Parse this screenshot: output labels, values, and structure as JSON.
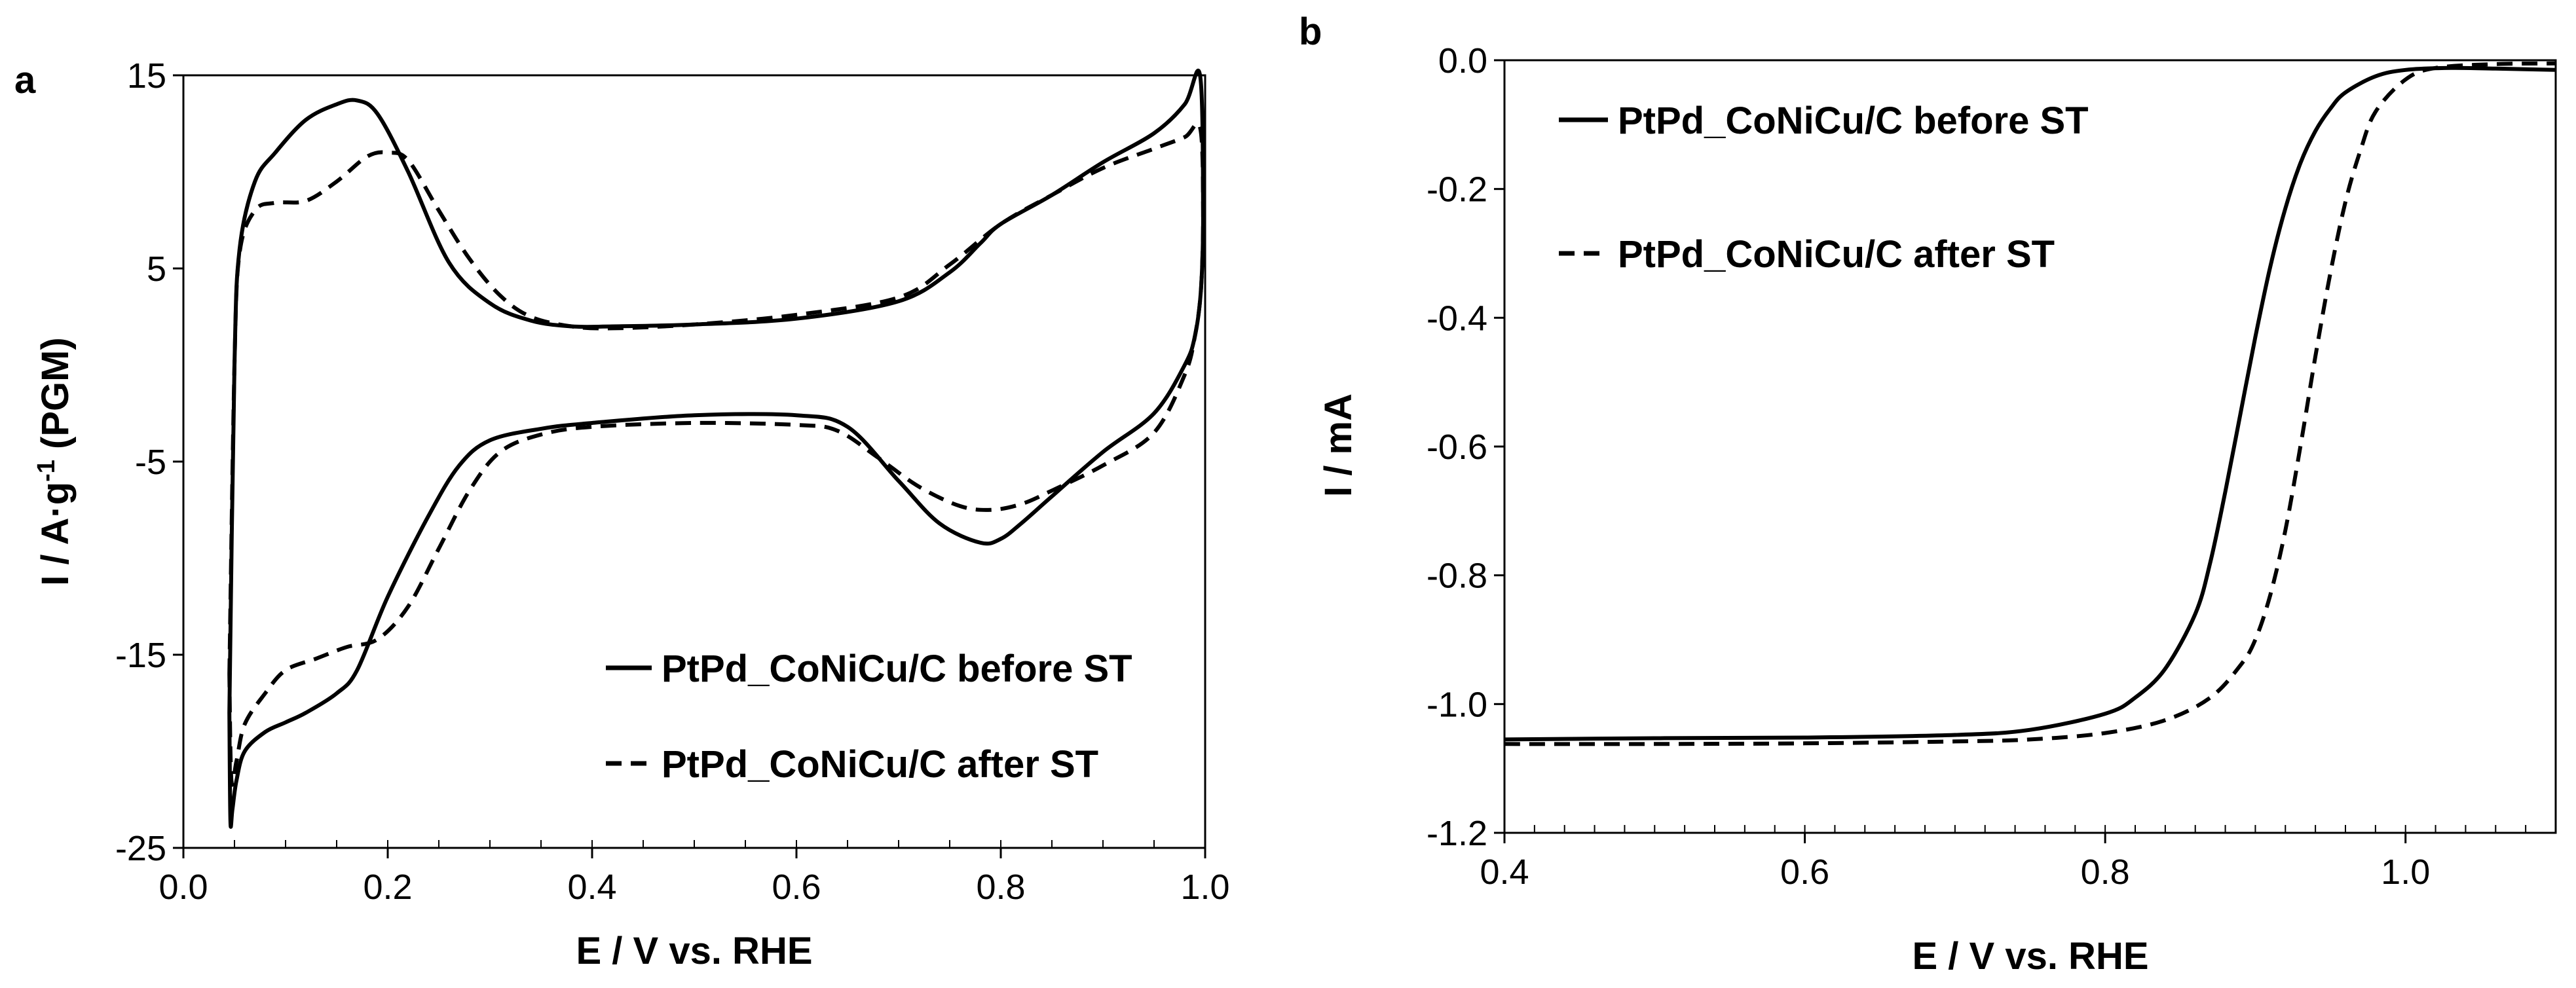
{
  "chart_data": [
    {
      "panel_label": "a",
      "type": "line",
      "xlabel": "E / V vs. RHE",
      "ylabel": {
        "main": "I / A·g",
        "sup": "-1",
        "suffix": " (PGM)"
      },
      "xlim": [
        0.0,
        1.0
      ],
      "ylim": [
        -25,
        15
      ],
      "xticks": [
        0.0,
        0.2,
        0.4,
        0.6,
        0.8,
        1.0
      ],
      "xtick_labels": [
        "0.0",
        "0.2",
        "0.4",
        "0.6",
        "0.8",
        "1.0"
      ],
      "yticks": [
        15,
        5,
        -5,
        -15,
        -25
      ],
      "ytick_labels": [
        "15",
        "5",
        "-5",
        "-15",
        "-25"
      ],
      "grid": false,
      "legend_position": "bottom-right",
      "series": [
        {
          "name": "PtPd_CoNiCu/C before ST",
          "style": "solid",
          "x": [
            0.045,
            0.05,
            0.055,
            0.07,
            0.09,
            0.12,
            0.15,
            0.17,
            0.19,
            0.22,
            0.26,
            0.3,
            0.34,
            0.38,
            0.42,
            0.5,
            0.6,
            0.7,
            0.75,
            0.78,
            0.8,
            0.85,
            0.9,
            0.95,
            0.98,
            0.995,
            0.998,
            0.996,
            0.99,
            0.98,
            0.95,
            0.9,
            0.85,
            0.82,
            0.8,
            0.78,
            0.74,
            0.7,
            0.65,
            0.6,
            0.5,
            0.4,
            0.35,
            0.3,
            0.27,
            0.24,
            0.2,
            0.17,
            0.15,
            0.12,
            0.1,
            0.08,
            0.06,
            0.052,
            0.048,
            0.046,
            0.045
          ],
          "y": [
            -18.0,
            0.0,
            6.0,
            9.5,
            11.0,
            12.7,
            13.5,
            13.7,
            13.0,
            10.0,
            5.3,
            3.2,
            2.3,
            2.0,
            2.0,
            2.1,
            2.4,
            3.3,
            4.8,
            6.3,
            7.3,
            8.8,
            10.5,
            12.0,
            13.5,
            15.0,
            8.0,
            4.0,
            1.5,
            0.0,
            -2.5,
            -4.5,
            -6.8,
            -8.2,
            -9.0,
            -9.2,
            -8.2,
            -6.0,
            -3.2,
            -2.6,
            -2.6,
            -3.0,
            -3.3,
            -3.9,
            -5.2,
            -7.8,
            -12.0,
            -15.8,
            -17.0,
            -18.0,
            -18.5,
            -19.0,
            -20.0,
            -21.5,
            -23.0,
            -23.6,
            -18.0
          ]
        },
        {
          "name": "PtPd_CoNiCu/C after ST",
          "style": "dashed",
          "x": [
            0.045,
            0.05,
            0.055,
            0.07,
            0.09,
            0.12,
            0.15,
            0.18,
            0.2,
            0.22,
            0.25,
            0.28,
            0.31,
            0.34,
            0.38,
            0.42,
            0.5,
            0.6,
            0.7,
            0.75,
            0.8,
            0.85,
            0.9,
            0.95,
            0.98,
            0.995,
            0.998,
            0.996,
            0.99,
            0.98,
            0.95,
            0.9,
            0.85,
            0.82,
            0.79,
            0.76,
            0.72,
            0.68,
            0.64,
            0.6,
            0.5,
            0.4,
            0.35,
            0.31,
            0.28,
            0.25,
            0.22,
            0.19,
            0.16,
            0.13,
            0.1,
            0.08,
            0.06,
            0.052,
            0.047,
            0.045
          ],
          "y": [
            -16.0,
            0.0,
            5.8,
            8.0,
            8.4,
            8.5,
            9.5,
            10.8,
            11.0,
            10.6,
            8.0,
            5.5,
            3.6,
            2.5,
            2.0,
            1.9,
            2.1,
            2.6,
            3.5,
            5.2,
            7.3,
            8.8,
            10.2,
            11.2,
            11.8,
            12.3,
            8.0,
            4.0,
            1.5,
            -0.5,
            -3.5,
            -5.2,
            -6.5,
            -7.2,
            -7.5,
            -7.3,
            -6.3,
            -4.8,
            -3.4,
            -3.1,
            -3.0,
            -3.2,
            -3.6,
            -4.5,
            -6.5,
            -9.5,
            -12.5,
            -14.2,
            -14.6,
            -15.2,
            -15.8,
            -17.0,
            -18.6,
            -20.5,
            -21.5,
            -16.0
          ]
        }
      ]
    },
    {
      "panel_label": "b",
      "type": "line",
      "xlabel": "E / V vs. RHE",
      "ylabel": "I / mA",
      "xlim": [
        0.4,
        1.1
      ],
      "ylim": [
        -1.2,
        0.0
      ],
      "xticks": [
        0.4,
        0.6,
        0.8,
        1.0
      ],
      "xtick_labels": [
        "0.4",
        "0.6",
        "0.8",
        "1.0"
      ],
      "yticks": [
        0.0,
        -0.2,
        -0.4,
        -0.6,
        -0.8,
        -1.0,
        -1.2
      ],
      "ytick_labels": [
        "0.0",
        "-0.2",
        "-0.4",
        "-0.6",
        "-0.8",
        "-1.0",
        "-1.2"
      ],
      "grid": false,
      "legend_position": "top-left",
      "series": [
        {
          "name": "PtPd_CoNiCu/C before ST",
          "style": "solid",
          "x": [
            0.4,
            0.5,
            0.6,
            0.7,
            0.75,
            0.8,
            0.82,
            0.84,
            0.86,
            0.87,
            0.88,
            0.89,
            0.9,
            0.91,
            0.92,
            0.93,
            0.94,
            0.95,
            0.96,
            0.98,
            1.0,
            1.03,
            1.06,
            1.1
          ],
          "y": [
            -1.055,
            -1.053,
            -1.052,
            -1.048,
            -1.04,
            -1.015,
            -0.99,
            -0.945,
            -0.86,
            -0.78,
            -0.67,
            -0.55,
            -0.43,
            -0.32,
            -0.23,
            -0.16,
            -0.11,
            -0.075,
            -0.05,
            -0.025,
            -0.015,
            -0.012,
            -0.013,
            -0.015
          ]
        },
        {
          "name": "PtPd_CoNiCu/C after ST",
          "style": "dashed",
          "x": [
            0.4,
            0.5,
            0.6,
            0.7,
            0.75,
            0.8,
            0.84,
            0.87,
            0.89,
            0.9,
            0.91,
            0.92,
            0.93,
            0.94,
            0.95,
            0.96,
            0.97,
            0.98,
            1.0,
            1.02,
            1.06,
            1.1
          ],
          "y": [
            -1.062,
            -1.062,
            -1.061,
            -1.058,
            -1.055,
            -1.045,
            -1.025,
            -0.99,
            -0.94,
            -0.9,
            -0.83,
            -0.73,
            -0.6,
            -0.46,
            -0.33,
            -0.22,
            -0.14,
            -0.08,
            -0.03,
            -0.012,
            -0.006,
            -0.005
          ]
        }
      ]
    }
  ]
}
